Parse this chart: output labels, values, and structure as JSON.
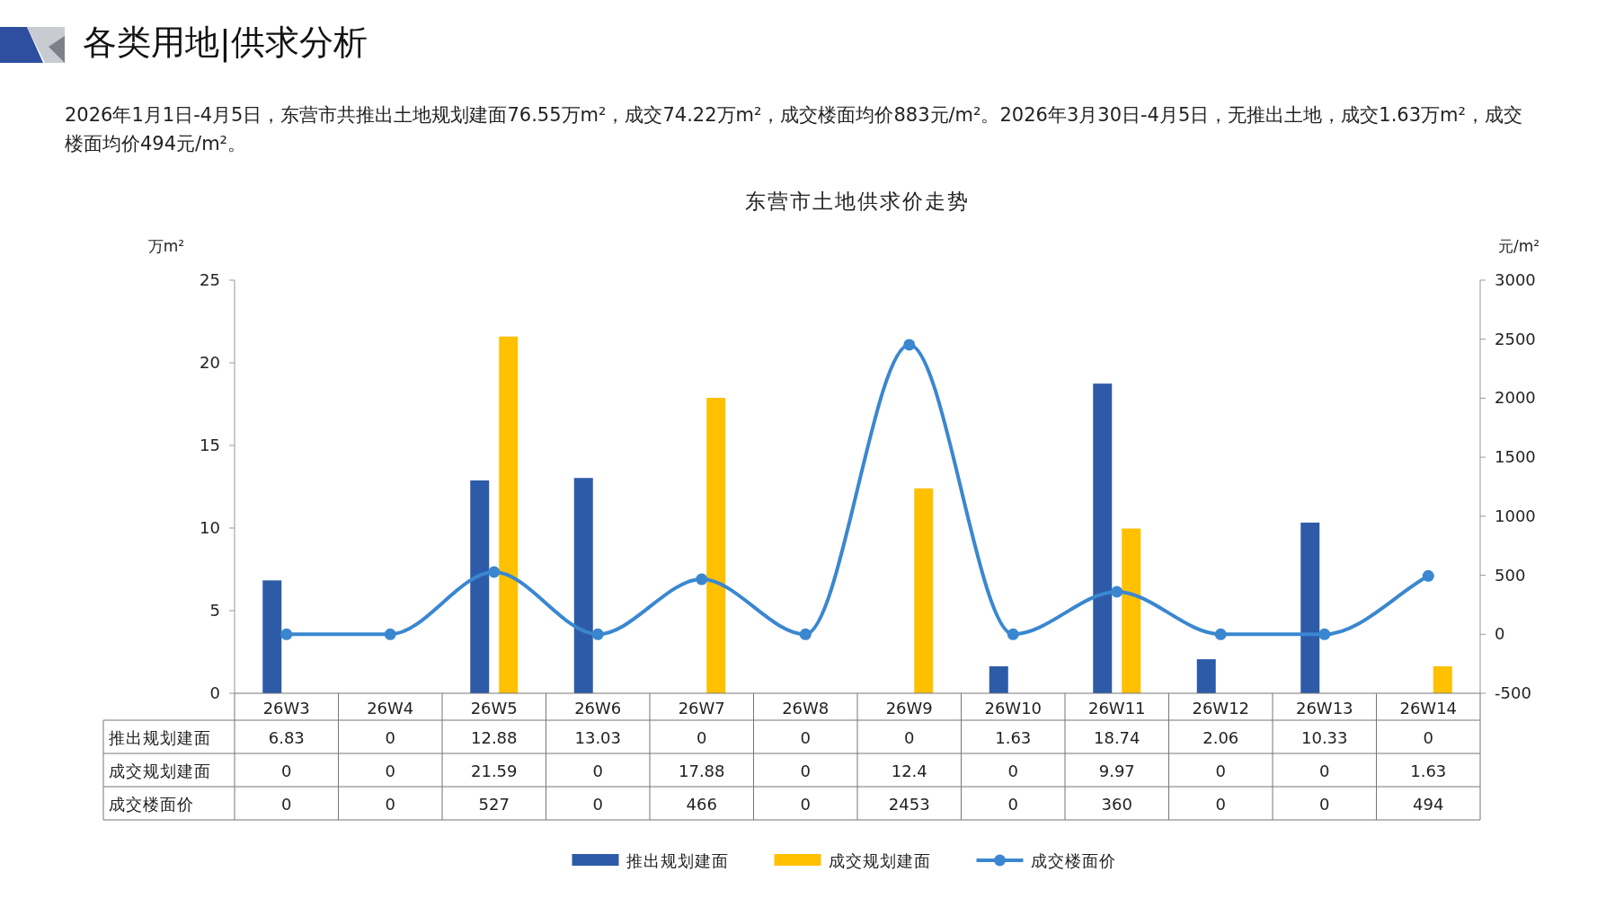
{
  "chart_data": {
    "type": "bar",
    "title": "东营市土地供求价走势",
    "annotations": [
      "各类用地|供求分析",
      "2026年1月1日-4月5日，东营市共推出土地规划建面76.55万m²，成交74.22万m²，成交楼面均价883元/m²。2026年3月30日-4月5日，无推出土地，成交1.63万m²，成交楼面均价494元/m²。"
    ],
    "ylabel": "万m²",
    "y2label": "元/m²",
    "categories": [
      "26W3",
      "26W4",
      "26W5",
      "26W6",
      "26W7",
      "26W8",
      "26W9",
      "26W10",
      "26W11",
      "26W12",
      "26W13",
      "26W14"
    ],
    "series": [
      {
        "name": "推出规划建面",
        "color": "#2e5ba8",
        "values": [
          6.83,
          0,
          12.88,
          13.03,
          0,
          0,
          0,
          1.63,
          18.74,
          2.06,
          10.33,
          0
        ]
      },
      {
        "name": "成交规划建面",
        "color": "#ffc000",
        "values": [
          0,
          0,
          21.59,
          0,
          17.88,
          0,
          12.4,
          0,
          9.97,
          0,
          0,
          1.63
        ]
      },
      {
        "name": "成交楼面价",
        "type": "line",
        "axis": "y2",
        "color": "#3a87d0",
        "marker": "circle",
        "values": [
          0,
          0,
          527,
          0,
          466,
          0,
          2453,
          0,
          360,
          0,
          0,
          494
        ]
      }
    ],
    "ylim": [
      0,
      25
    ],
    "yticks": [
      0,
      5,
      10,
      15,
      20,
      25
    ],
    "y2lim": [
      -500,
      3000
    ],
    "y2ticks": [
      -500,
      0,
      500,
      1000,
      1500,
      2000,
      2500,
      3000
    ],
    "data_labels": true,
    "grid": false,
    "legend": "bottom"
  }
}
